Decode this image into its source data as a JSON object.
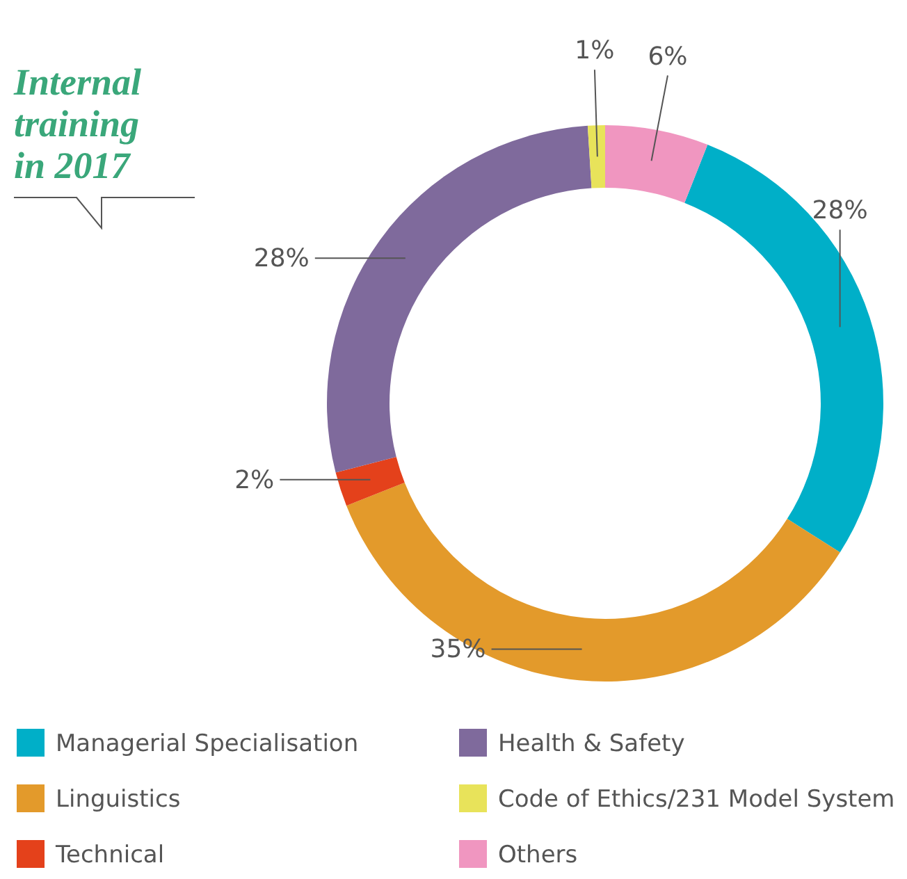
{
  "chart_data": {
    "type": "donut",
    "title": "Internal training in 2017",
    "categories": [
      "Managerial Specialisation",
      "Linguistics",
      "Technical",
      "Health & Safety",
      "Code of Ethics/231 Model System",
      "Others"
    ],
    "values": [
      28,
      35,
      2,
      28,
      1,
      6
    ],
    "colors": [
      "#00afc8",
      "#e39a2b",
      "#e4411b",
      "#7f6a9c",
      "#e8e35a",
      "#f096c0"
    ],
    "value_labels": [
      "28%",
      "35%",
      "2%",
      "28%",
      "1%",
      "6%"
    ],
    "legend": "bottom"
  }
}
